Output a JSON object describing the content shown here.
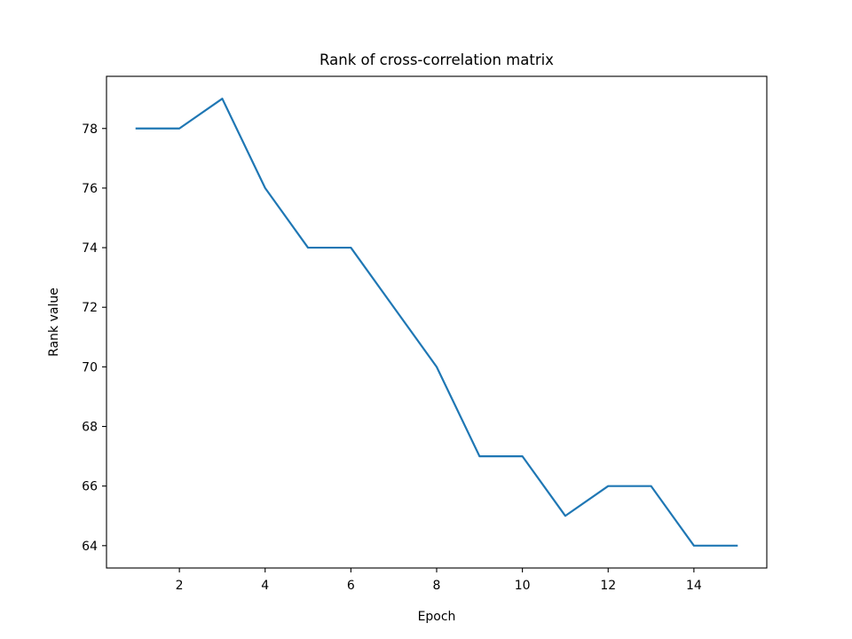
{
  "chart_data": {
    "type": "line",
    "title": "Rank of cross-correlation matrix",
    "xlabel": "Epoch",
    "ylabel": "Rank value",
    "x": [
      1,
      2,
      3,
      4,
      5,
      6,
      7,
      8,
      9,
      10,
      11,
      12,
      13,
      14,
      15
    ],
    "series": [
      {
        "values": [
          78,
          78,
          79,
          76,
          74,
          74,
          72,
          70,
          67,
          67,
          65,
          66,
          66,
          64,
          64
        ],
        "color": "#1f77b4"
      }
    ],
    "xlim": [
      0.3,
      15.7
    ],
    "ylim": [
      63.25,
      79.75
    ],
    "xticks": [
      2,
      4,
      6,
      8,
      10,
      12,
      14
    ],
    "yticks": [
      64,
      66,
      68,
      70,
      72,
      74,
      76,
      78
    ],
    "grid": false,
    "legend": "none"
  }
}
